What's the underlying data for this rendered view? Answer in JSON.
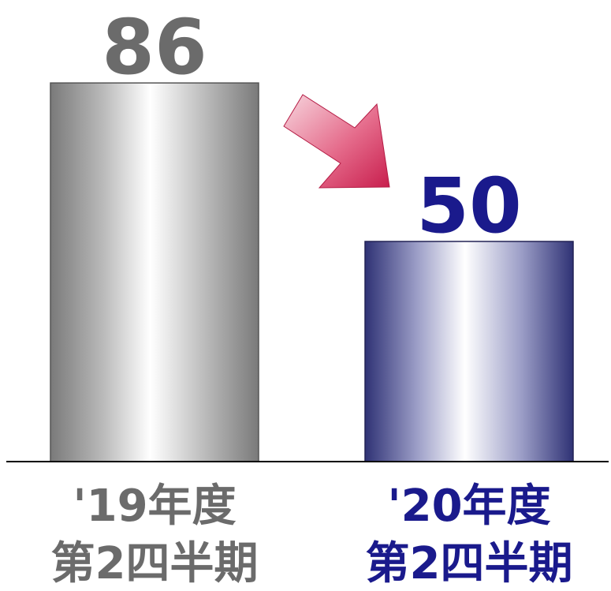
{
  "chart_data": {
    "type": "bar",
    "categories": [
      [
        "'19年度",
        "第2四半期"
      ],
      [
        "'20年度",
        "第2四半期"
      ]
    ],
    "values": [
      86,
      50
    ],
    "data_labels": [
      "86",
      "50"
    ],
    "colors": {
      "bar_edges": [
        "#7a7a7a",
        "#2f3275"
      ],
      "value_labels": [
        "#6b6b6b",
        "#1a1a8c"
      ],
      "category_labels": [
        "#6b6b6b",
        "#1a1a8c"
      ],
      "arrow": "#d0305a"
    },
    "ylim": [
      0,
      100
    ],
    "grid": false,
    "legend": "none",
    "annotation": {
      "type": "arrow",
      "direction": "down-right",
      "meaning": "decrease"
    }
  }
}
